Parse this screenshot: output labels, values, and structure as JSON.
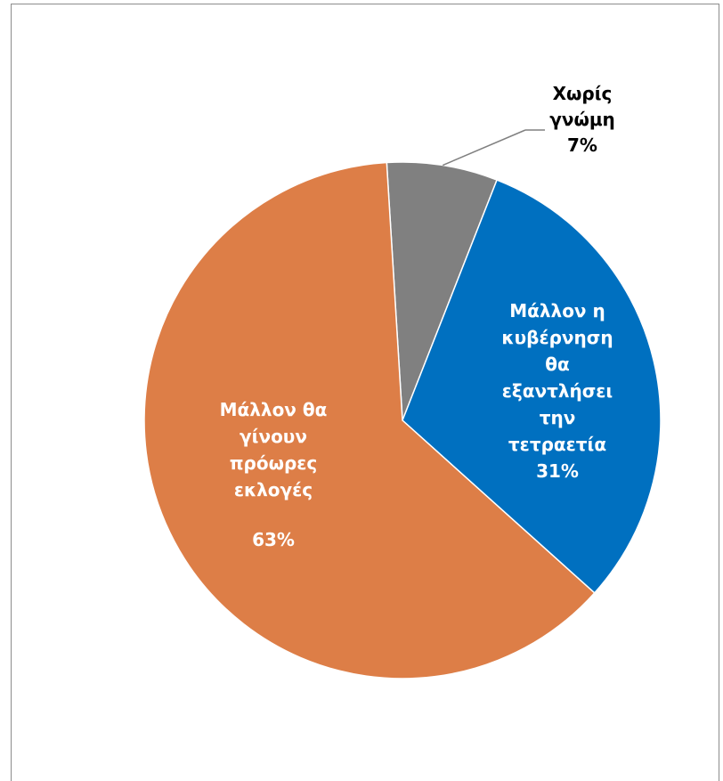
{
  "chart_data": {
    "type": "pie",
    "slices": [
      {
        "label_lines": [
          "Χωρίς",
          "γνώμη"
        ],
        "value_label": "7%",
        "value": 7,
        "color": "#808080",
        "label_color": "#000000"
      },
      {
        "label_lines": [
          "Μάλλον η",
          "κυβέρνηση",
          "θα",
          "εξαντλήσει",
          "την",
          "τετραετία"
        ],
        "value_label": "31%",
        "value": 31,
        "color": "#0070c0",
        "label_color": "#ffffff"
      },
      {
        "label_lines": [
          "Μάλλον θα",
          "γίνουν",
          "πρόωρες",
          "εκλογές"
        ],
        "value_label": "63%",
        "value": 63,
        "color": "#dd7e47",
        "label_color": "#ffffff"
      }
    ]
  }
}
